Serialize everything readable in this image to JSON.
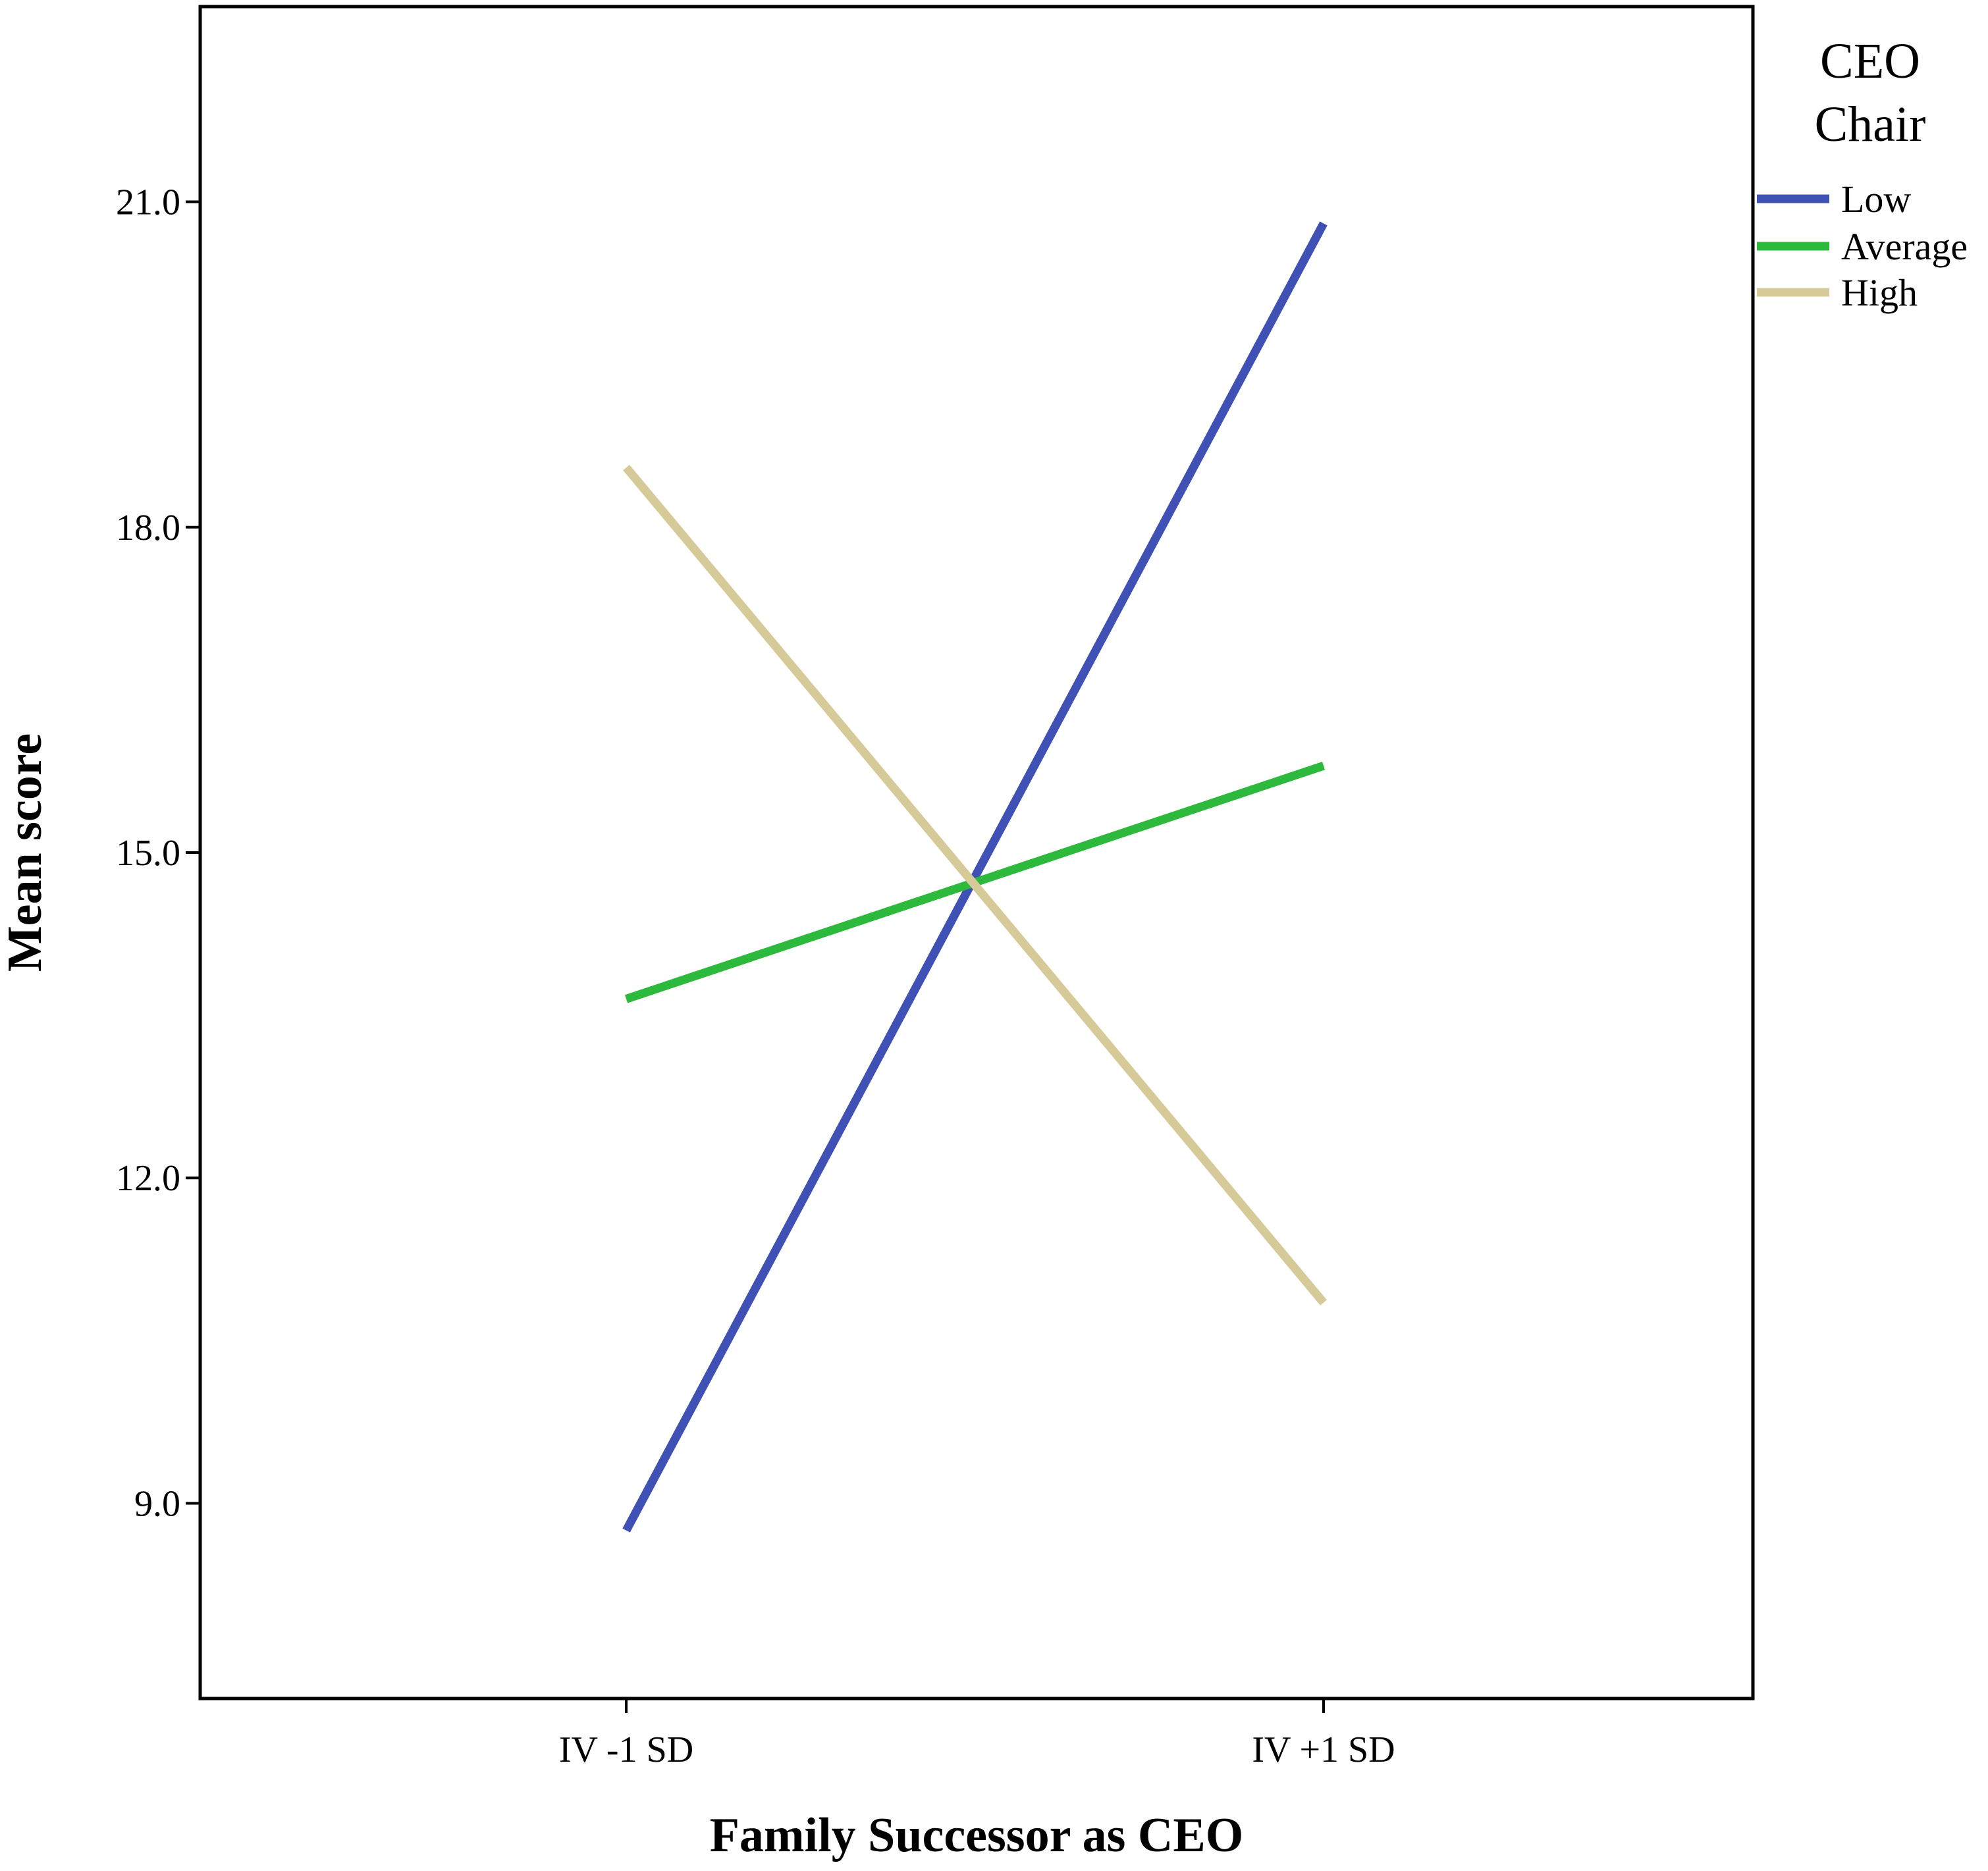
{
  "chart_data": {
    "type": "line",
    "title": "",
    "xlabel": "Family Successor as CEO",
    "ylabel": "Mean score",
    "categories": [
      "IV -1 SD",
      "IV +1 SD"
    ],
    "ylim": [
      7.2,
      22.8
    ],
    "yticks": [
      9.0,
      12.0,
      15.0,
      18.0,
      21.0
    ],
    "ytick_labels": [
      "9.0",
      "12.0",
      "15.0",
      "18.0",
      "21.0"
    ],
    "grid": false,
    "legend": {
      "title_line1": "CEO",
      "title_line2": "Chair",
      "placement": "outside-top-right"
    },
    "series": [
      {
        "name": "Low",
        "values": [
          8.75,
          20.8
        ],
        "color": "#3F51B5"
      },
      {
        "name": "Average",
        "values": [
          13.65,
          15.8
        ],
        "color": "#2DBA3C"
      },
      {
        "name": "High",
        "values": [
          18.55,
          10.85
        ],
        "color": "#D6CB98"
      }
    ]
  }
}
